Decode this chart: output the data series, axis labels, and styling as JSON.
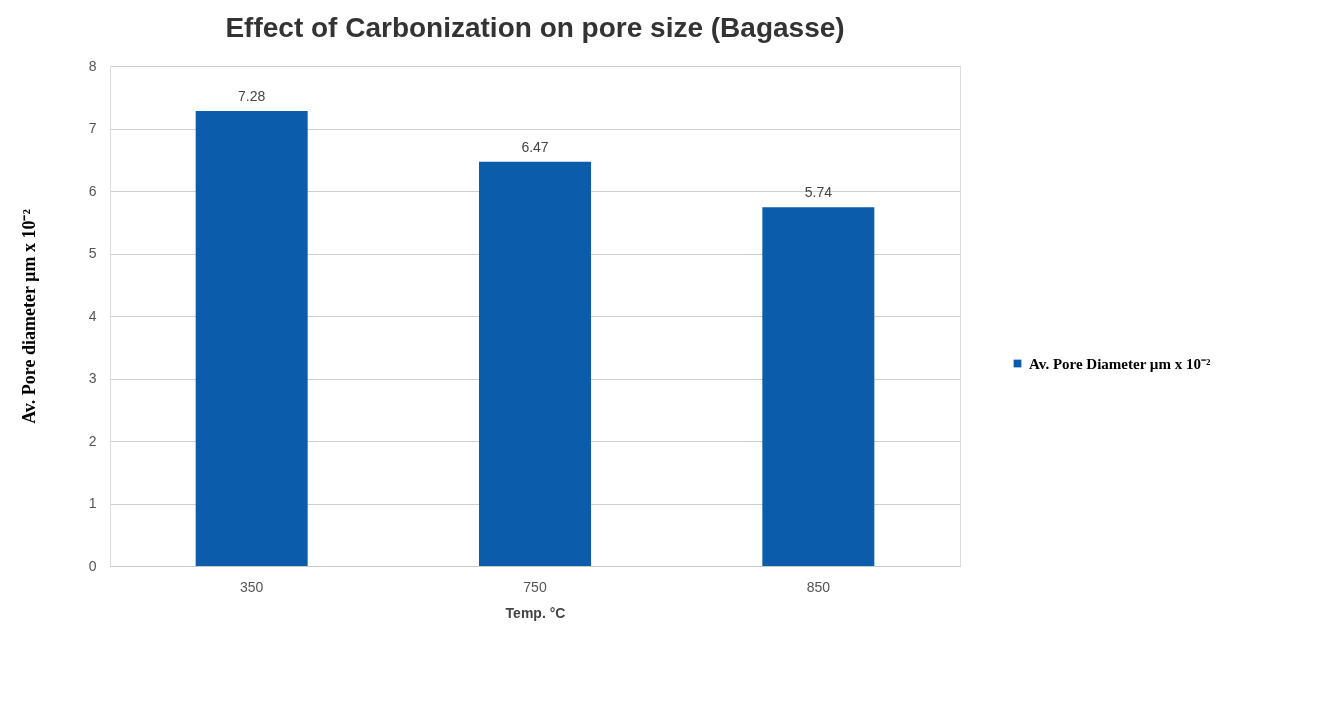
{
  "chart_data": {
    "type": "bar",
    "title": "Effect of Carbonization on pore size  (Bagasse)",
    "xlabel": "Temp. °C",
    "ylabel": "Av. Pore diameter µm x 10⁻²",
    "categories": [
      "350",
      "750",
      "850"
    ],
    "series": [
      {
        "name": "Av. Pore Diameter µm x 10⁻²",
        "color": "#0b5cab",
        "values": [
          7.28,
          6.47,
          5.74
        ]
      }
    ],
    "ylim": [
      0,
      8
    ],
    "yticks": [
      0,
      1,
      2,
      3,
      4,
      5,
      6,
      7,
      8
    ],
    "grid": "y",
    "legend": "right",
    "data_labels": true
  }
}
